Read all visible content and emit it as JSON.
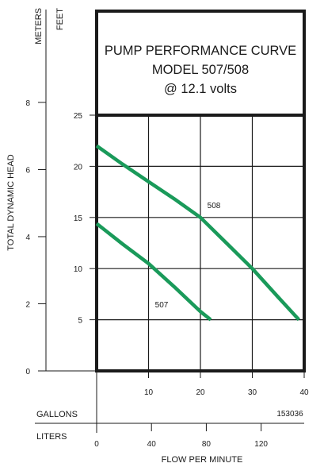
{
  "title_lines": [
    "PUMP PERFORMANCE CURVE",
    "MODEL 507/508",
    "@ 12.1 volts"
  ],
  "figure_code": "153036",
  "axes": {
    "left_units": [
      "METERS",
      "FEET"
    ],
    "y_label": "TOTAL DYNAMIC HEAD",
    "x_label": "FLOW PER MINUTE",
    "x_units": [
      "GALLONS",
      "LITERS"
    ]
  },
  "colors": {
    "curve": "#1a9a5a",
    "frame": "#1a1a1a"
  },
  "chart_data": {
    "type": "line",
    "title": "PUMP PERFORMANCE CURVE MODEL 507/508 @ 12.1 volts",
    "xlabel": "FLOW PER MINUTE",
    "ylabel": "TOTAL DYNAMIC HEAD",
    "xlim": [
      0,
      40
    ],
    "ylim": [
      0,
      25
    ],
    "x_ticks_gallons": [
      10,
      20,
      30,
      40
    ],
    "x_ticks_liters": [
      0,
      40,
      80,
      120
    ],
    "y_ticks_feet": [
      5,
      10,
      15,
      20,
      25
    ],
    "y_ticks_meters": [
      0,
      2,
      4,
      6,
      8
    ],
    "grid": true,
    "series": [
      {
        "name": "507",
        "x": [
          0,
          5,
          10,
          15,
          20,
          22
        ],
        "y": [
          14.4,
          12.4,
          10.5,
          8.2,
          5.8,
          5
        ]
      },
      {
        "name": "508",
        "x": [
          0,
          5,
          10,
          15,
          20,
          25,
          30,
          35,
          39
        ],
        "y": [
          22,
          20.2,
          18.5,
          16.8,
          15,
          12.5,
          10,
          7.2,
          5
        ]
      }
    ]
  }
}
